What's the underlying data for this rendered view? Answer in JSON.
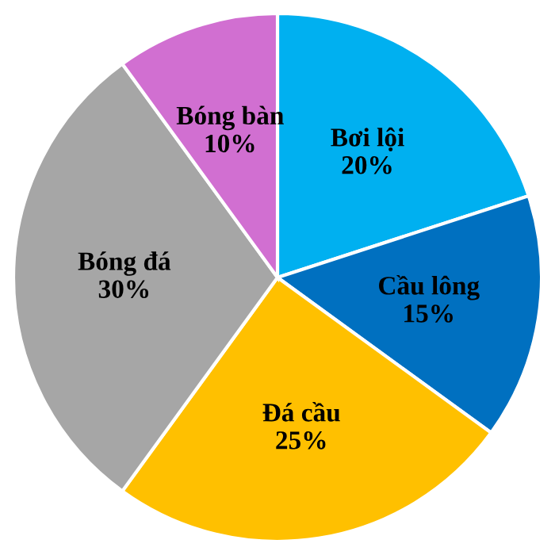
{
  "chart_data": {
    "type": "pie",
    "categories": [
      "Bơi lội",
      "Cầu lông",
      "Đá cầu",
      "Bóng đá",
      "Bóng bàn"
    ],
    "values": [
      20,
      15,
      25,
      30,
      10
    ],
    "colors": [
      "#00b0f0",
      "#0070c0",
      "#ffc000",
      "#a6a6a6",
      "#d16fd1"
    ],
    "value_labels": [
      "20%",
      "15%",
      "25%",
      "30%",
      "10%"
    ]
  }
}
